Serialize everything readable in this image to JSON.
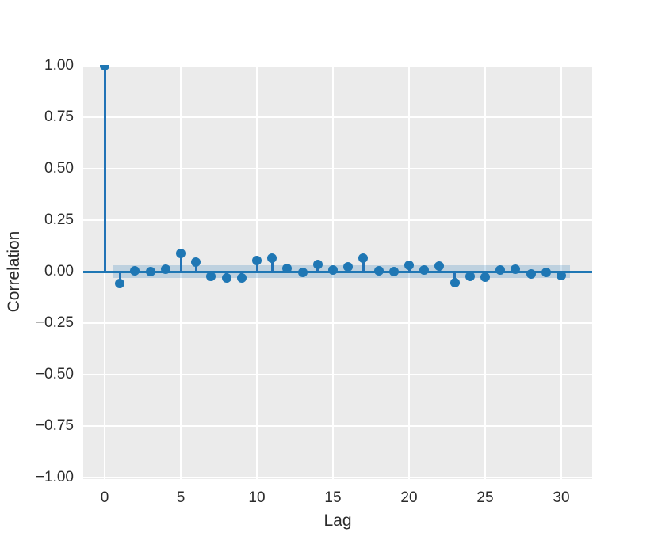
{
  "figure": {
    "background": "#ffffff",
    "plot_background": "#ebebeb",
    "grid_color": "#ffffff",
    "accent_blue": "#1f77b4",
    "band_color": "rgba(31,119,180,0.22)"
  },
  "chart_data": {
    "type": "scatter",
    "variant": "stem-autocorrelation",
    "title": "",
    "xlabel": "Lag",
    "ylabel": "Correlation",
    "xlim": [
      -1.4,
      32.0
    ],
    "ylim": [
      -1.0,
      1.0
    ],
    "grid": true,
    "legend": "none",
    "x_tick_labels": [
      "0",
      "5",
      "10",
      "15",
      "20",
      "25",
      "30"
    ],
    "x_tick_values": [
      0,
      5,
      10,
      15,
      20,
      25,
      30
    ],
    "y_tick_labels": [
      "1.00",
      "0.75",
      "0.50",
      "0.25",
      "0.00",
      "−0.25",
      "−0.50",
      "−0.75",
      "−1.00"
    ],
    "y_tick_values": [
      1.0,
      0.75,
      0.5,
      0.25,
      0.0,
      -0.25,
      -0.5,
      -0.75,
      -1.0
    ],
    "lags": [
      0,
      1,
      2,
      3,
      4,
      5,
      6,
      7,
      8,
      9,
      10,
      11,
      12,
      13,
      14,
      15,
      16,
      17,
      18,
      19,
      20,
      21,
      22,
      23,
      24,
      25,
      26,
      27,
      28,
      29,
      30
    ],
    "values": [
      1.0,
      -0.057,
      0.005,
      0.0,
      0.012,
      0.088,
      0.046,
      -0.024,
      -0.03,
      -0.032,
      0.054,
      0.067,
      0.015,
      -0.005,
      0.034,
      0.008,
      0.023,
      0.065,
      0.005,
      0.0,
      0.03,
      0.008,
      0.028,
      -0.053,
      -0.024,
      -0.027,
      0.007,
      0.013,
      -0.01,
      -0.002,
      -0.02
    ],
    "zero_line_value": 0.0,
    "confidence_band": {
      "low": -0.03,
      "high": 0.03,
      "lag_start": 0.55,
      "lag_end": 30.55
    }
  }
}
